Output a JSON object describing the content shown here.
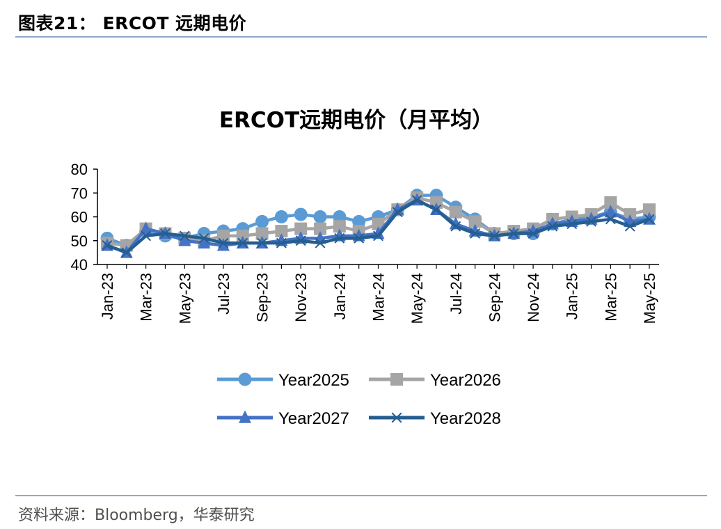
{
  "header": {
    "figure_title": "图表21：  ERCOT 远期电价"
  },
  "footer": {
    "source": "资料来源：Bloomberg，华泰研究"
  },
  "chart_data": {
    "type": "line",
    "title": "ERCOT远期电价（月平均）",
    "xlabel": "",
    "ylabel": "",
    "ylim": [
      40,
      80
    ],
    "yticks": [
      40,
      50,
      60,
      70,
      80
    ],
    "grid": false,
    "legend_position": "bottom",
    "categories": [
      "Jan-23",
      "Feb-23",
      "Mar-23",
      "Apr-23",
      "May-23",
      "Jun-23",
      "Jul-23",
      "Aug-23",
      "Sep-23",
      "Oct-23",
      "Nov-23",
      "Dec-23",
      "Jan-24",
      "Feb-24",
      "Mar-24",
      "Apr-24",
      "May-24",
      "Jun-24",
      "Jul-24",
      "Aug-24",
      "Sep-24",
      "Oct-24",
      "Nov-24",
      "Dec-24",
      "Jan-25",
      "Feb-25",
      "Mar-25",
      "Apr-25",
      "May-25"
    ],
    "tick_labels": [
      "Jan-23",
      "Mar-23",
      "May-23",
      "Jul-23",
      "Sep-23",
      "Nov-23",
      "Jan-24",
      "Mar-24",
      "May-24",
      "Jul-24",
      "Sep-24",
      "Nov-24",
      "Jan-25",
      "Mar-25",
      "May-25"
    ],
    "series": [
      {
        "name": "Year2025",
        "color": "#5b9bd5",
        "marker": "circle",
        "values": [
          51,
          48,
          54,
          52,
          51,
          53,
          54,
          55,
          58,
          60,
          61,
          60,
          60,
          58,
          60,
          63,
          69,
          69,
          64,
          59,
          53,
          53,
          53,
          57,
          59,
          60,
          62,
          59,
          60
        ]
      },
      {
        "name": "Year2026",
        "color": "#a5a5a5",
        "marker": "square",
        "values": [
          49,
          48,
          55,
          53,
          51,
          50,
          52,
          52,
          53,
          54,
          55,
          55,
          56,
          54,
          57,
          63,
          68,
          66,
          62,
          58,
          53,
          54,
          55,
          59,
          60,
          61,
          66,
          61,
          63
        ]
      },
      {
        "name": "Year2027",
        "color": "#4472c4",
        "marker": "triangle",
        "values": [
          48,
          45,
          55,
          53,
          50,
          49,
          48,
          49,
          49,
          50,
          51,
          51,
          52,
          52,
          53,
          63,
          67,
          63,
          57,
          54,
          52,
          53,
          54,
          57,
          58,
          59,
          62,
          58,
          59
        ]
      },
      {
        "name": "Year2028",
        "color": "#255e91",
        "marker": "x",
        "values": [
          48,
          45,
          52,
          53,
          52,
          51,
          49,
          49,
          49,
          49,
          50,
          49,
          51,
          51,
          52,
          62,
          67,
          63,
          56,
          53,
          52,
          53,
          53,
          56,
          57,
          58,
          59,
          56,
          59
        ]
      }
    ]
  }
}
